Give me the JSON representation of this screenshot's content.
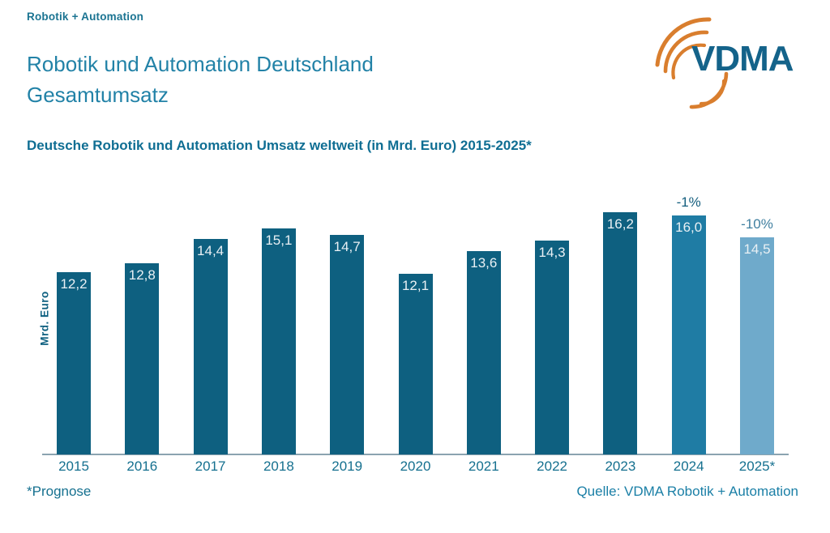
{
  "header": {
    "brand": "Robotik + Automation"
  },
  "logo": {
    "text": "VDMA",
    "text_color": "#14638A",
    "arc_color": "#D97E2E"
  },
  "title": "Robotik und Automation Deutschland\nGesamtumsatz",
  "subtitle": "Deutsche Robotik und Automation Umsatz weltweit (in Mrd. Euro) 2015-2025*",
  "chart_data": {
    "type": "bar",
    "title": "Deutsche Robotik und Automation Umsatz weltweit (in Mrd. Euro) 2015-2025*",
    "categories": [
      "2015",
      "2016",
      "2017",
      "2018",
      "2019",
      "2020",
      "2021",
      "2022",
      "2023",
      "2024",
      "2025*"
    ],
    "values": [
      12.2,
      12.8,
      14.4,
      15.1,
      14.7,
      12.1,
      13.6,
      14.3,
      16.2,
      16.0,
      14.5
    ],
    "value_labels": [
      "12,2",
      "12,8",
      "14,4",
      "15,1",
      "14,7",
      "12,1",
      "13,6",
      "14,3",
      "16,2",
      "16,0",
      "14,5"
    ],
    "annotations": [
      {
        "category": "2024",
        "text": "-1%",
        "color": "#145E7E"
      },
      {
        "category": "2025*",
        "text": "-10%",
        "color": "#3F7FA0"
      }
    ],
    "xlabel": "",
    "ylabel": "Mrd. Euro",
    "ylim": [
      0,
      17
    ],
    "grid": false,
    "legend": false,
    "bar_colors": {
      "default": "#0E6080",
      "2024": "#1F7CA4",
      "2025*": "#6FAACB"
    },
    "value_label_color": "#E9F0F4",
    "axis_color": "#8BA3B0"
  },
  "footer": {
    "note": "*Prognose",
    "source": "Quelle: VDMA Robotik + Automation"
  }
}
